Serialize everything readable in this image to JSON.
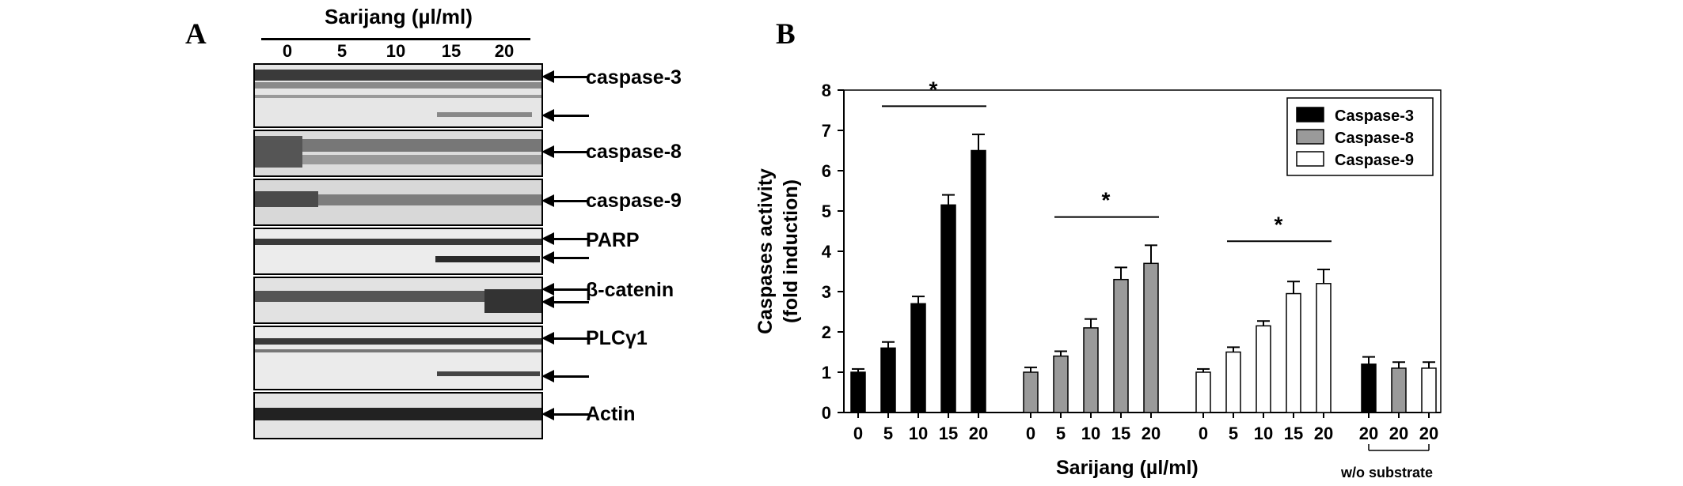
{
  "panel_a": {
    "letter": "A",
    "treatment_label": "Sarijang (µl/ml)",
    "doses": [
      "0",
      "5",
      "10",
      "15",
      "20"
    ],
    "blots": [
      {
        "label": "caspase-3",
        "extra_arrow": true
      },
      {
        "label": "caspase-8",
        "extra_arrow": false
      },
      {
        "label": "caspase-9",
        "extra_arrow": false
      },
      {
        "label": "PARP",
        "extra_arrow": true
      },
      {
        "label": "β-catenin",
        "extra_arrow": true
      },
      {
        "label": "PLCγ1",
        "extra_arrow": true
      },
      {
        "label": "Actin",
        "extra_arrow": false
      }
    ]
  },
  "panel_b": {
    "letter": "B",
    "ylabel_line1": "Caspases activity",
    "ylabel_line2": "(fold induction)",
    "xlabel": "Sarijang (µl/ml)",
    "without_substrate_label": "w/o substrate",
    "significance_marker": "*"
  },
  "chart_data": {
    "type": "bar",
    "ylim": [
      0,
      8
    ],
    "yticks": [
      0,
      1,
      2,
      3,
      4,
      5,
      6,
      7,
      8
    ],
    "legend_position": "top-right",
    "series": [
      {
        "name": "Caspase-3",
        "color": "#000000",
        "x": [
          "0",
          "5",
          "10",
          "15",
          "20"
        ],
        "values": [
          1.0,
          1.6,
          2.7,
          5.15,
          6.5
        ],
        "errors": [
          0.08,
          0.15,
          0.18,
          0.25,
          0.4
        ]
      },
      {
        "name": "Caspase-8",
        "color": "#9a9a9a",
        "x": [
          "0",
          "5",
          "10",
          "15",
          "20"
        ],
        "values": [
          1.0,
          1.4,
          2.1,
          3.3,
          3.7
        ],
        "errors": [
          0.12,
          0.12,
          0.22,
          0.3,
          0.45
        ]
      },
      {
        "name": "Caspase-9",
        "color": "#ffffff",
        "x": [
          "0",
          "5",
          "10",
          "15",
          "20"
        ],
        "values": [
          1.0,
          1.5,
          2.15,
          2.95,
          3.2
        ],
        "errors": [
          0.08,
          0.12,
          0.12,
          0.3,
          0.35
        ]
      }
    ],
    "without_substrate": {
      "x": [
        "20",
        "20",
        "20"
      ],
      "values": [
        1.2,
        1.1,
        1.1
      ],
      "errors": [
        0.18,
        0.15,
        0.15
      ],
      "colors": [
        "#000000",
        "#9a9a9a",
        "#ffffff"
      ]
    }
  }
}
